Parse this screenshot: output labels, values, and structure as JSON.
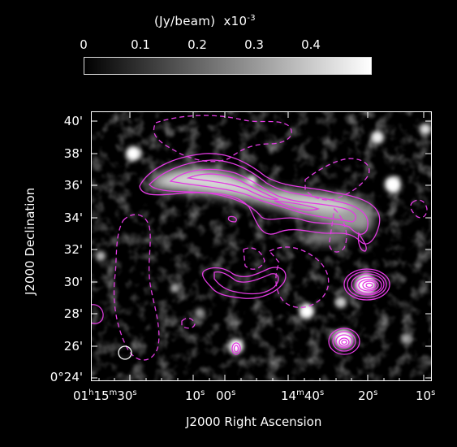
{
  "colorbar": {
    "unit_label": "(Jy/beam)",
    "scale_base": "x10",
    "scale_exp": "-3",
    "ticks": [
      "0",
      "0.1",
      "0.2",
      "0.3",
      "0.4"
    ]
  },
  "axes": {
    "xlabel": "J2000 Right Ascension",
    "ylabel": "J2000 Declination",
    "yticks": [
      {
        "text": "40'"
      },
      {
        "text": "38'"
      },
      {
        "text": "36'"
      },
      {
        "text": "34'"
      },
      {
        "text": "32'"
      },
      {
        "text": "30'"
      },
      {
        "text": "28'"
      },
      {
        "text": "26'"
      },
      {
        "text": "0°24'"
      }
    ],
    "xticks": [
      {
        "h": "01",
        "m": "15",
        "s": "30"
      },
      {
        "s": "10"
      },
      {
        "s": "00"
      },
      {
        "m": "14",
        "s": "40"
      },
      {
        "s": "20"
      },
      {
        "s": "10"
      }
    ]
  },
  "colors": {
    "contour": "#e23be2",
    "background": "#000000",
    "frame": "#ffffff"
  }
}
